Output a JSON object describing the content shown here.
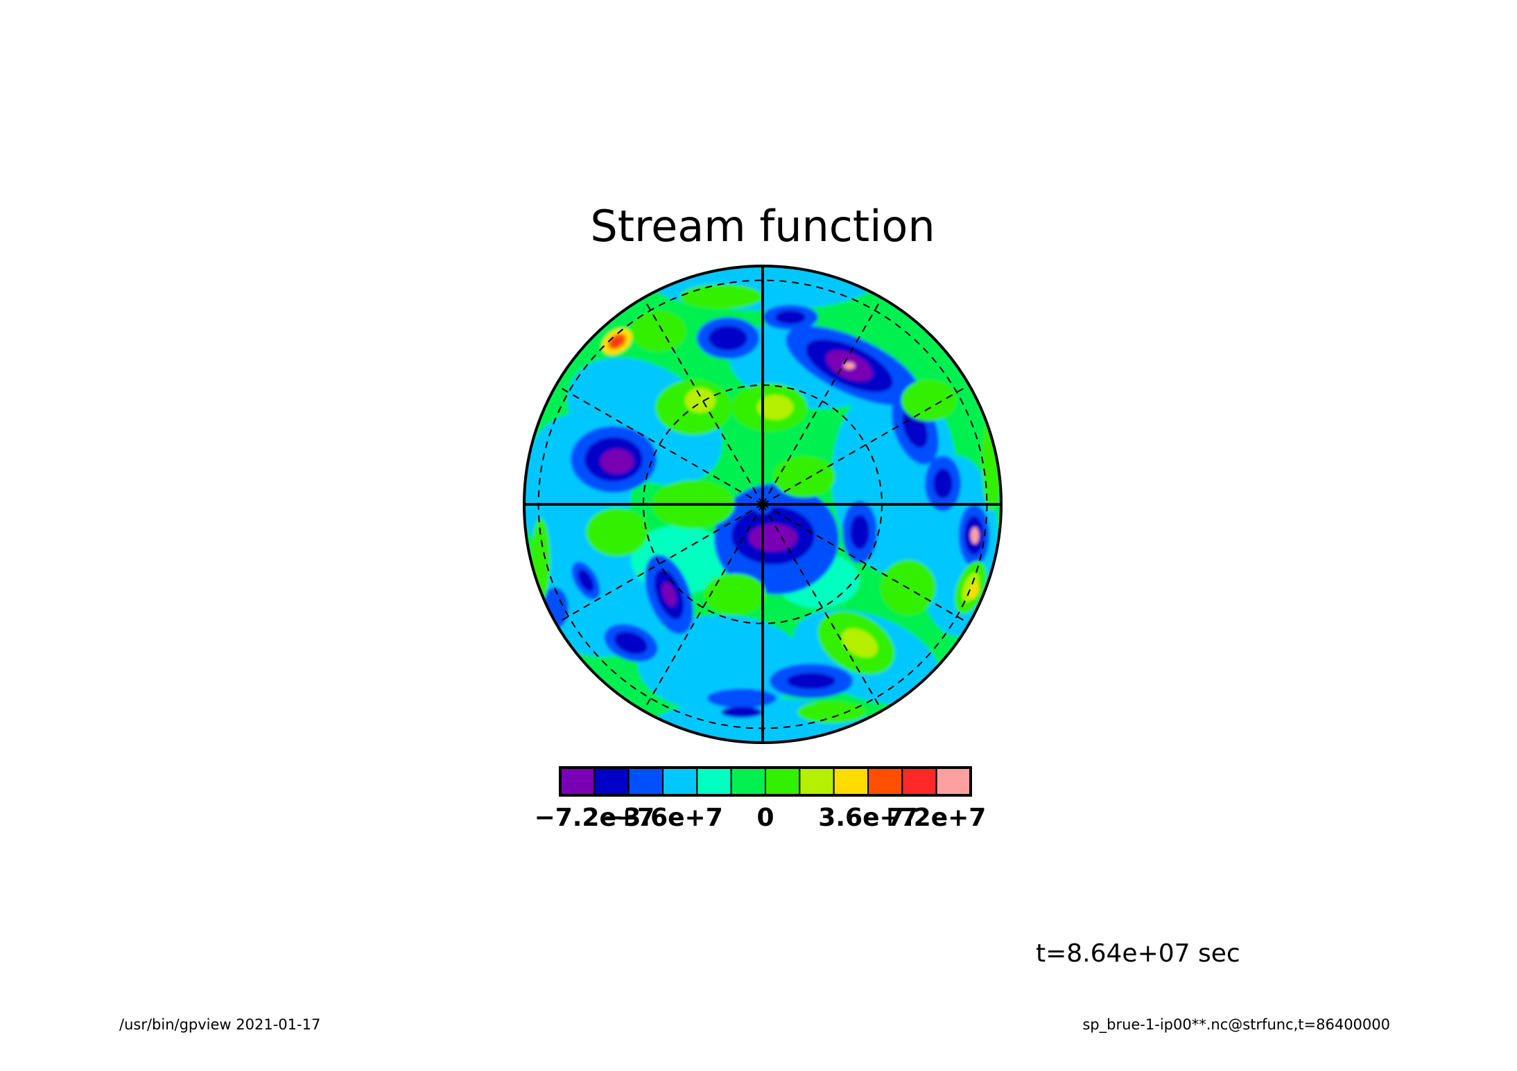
{
  "chart_data": {
    "type": "contour",
    "title": "Stream function",
    "projection": "polar",
    "colorbar": {
      "colors": [
        "#7a00b4",
        "#0000c8",
        "#0050ff",
        "#00c8ff",
        "#00ffc0",
        "#00f050",
        "#32f000",
        "#b4f000",
        "#ffdc00",
        "#ff5000",
        "#ff2828",
        "#ffa0a0"
      ],
      "ticks": [
        {
          "label": "-7.2e+7",
          "boundary": 1
        },
        {
          "label": "-3.6e+7",
          "boundary": 3
        },
        {
          "label": "0",
          "boundary": 6
        },
        {
          "label": "3.6e+7",
          "boundary": 9
        },
        {
          "label": "7.2e+7",
          "boundary": 11
        }
      ]
    },
    "field_note": "Contour blobs are a visual approximation of the plotted field; exact values not readable."
  },
  "annotations": {
    "time": "t=8.64e+07 sec",
    "footer_left": "/usr/bin/gpview   2021-01-17",
    "footer_right": "sp_brue-1-ip00**.nc@strfunc,t=86400000"
  }
}
